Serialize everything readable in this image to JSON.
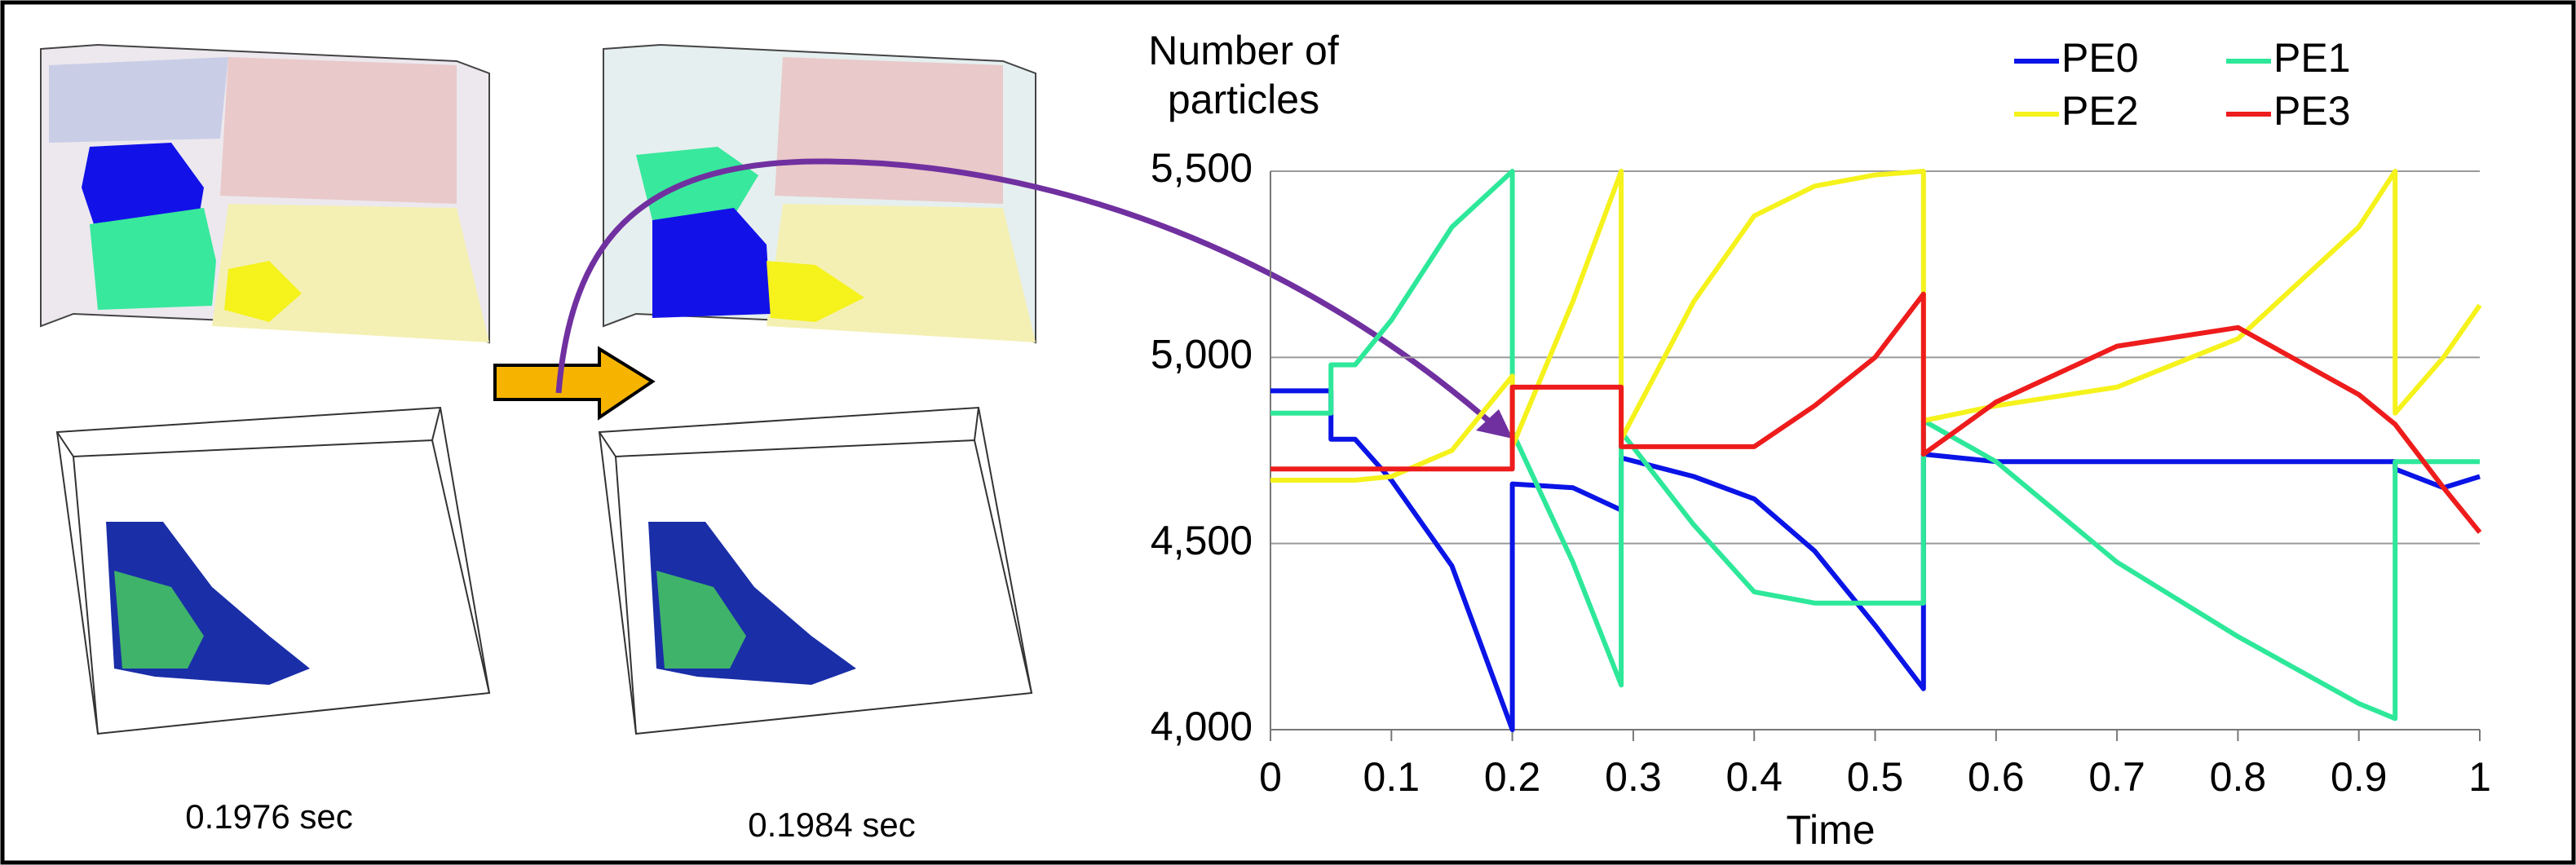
{
  "chart_data": {
    "type": "line",
    "ylabel": "Number of particles",
    "xlabel": "Time",
    "x": [
      0,
      0.05,
      0.05,
      0.07,
      0.1,
      0.15,
      0.2,
      0.2,
      0.25,
      0.29,
      0.29,
      0.35,
      0.4,
      0.45,
      0.5,
      0.54,
      0.54,
      0.6,
      0.7,
      0.8,
      0.9,
      0.93,
      0.93,
      0.97,
      1
    ],
    "series": [
      {
        "name": "PE0",
        "color": "#0a14e6",
        "values": [
          4910,
          4910,
          4780,
          4780,
          4670,
          4440,
          4000,
          4660,
          4650,
          4590,
          4730,
          4680,
          4620,
          4480,
          4280,
          4110,
          4740,
          4720,
          4720,
          4720,
          4720,
          4720,
          4700,
          4650,
          4680
        ]
      },
      {
        "name": "PE1",
        "color": "#2ee89a",
        "values": [
          4850,
          4850,
          4980,
          4980,
          5100,
          5350,
          5500,
          4800,
          4450,
          4120,
          4800,
          4550,
          4370,
          4340,
          4340,
          4340,
          4830,
          4720,
          4450,
          4250,
          4070,
          4030,
          4720,
          4720,
          4720
        ]
      },
      {
        "name": "PE2",
        "color": "#f5f21c",
        "values": [
          4670,
          4670,
          4670,
          4670,
          4680,
          4750,
          4950,
          4760,
          5150,
          5500,
          4780,
          5150,
          5380,
          5460,
          5490,
          5500,
          4830,
          4870,
          4920,
          5050,
          5350,
          5500,
          4850,
          5000,
          5140
        ]
      },
      {
        "name": "PE3",
        "color": "#ee1c1c",
        "values": [
          4700,
          4700,
          4700,
          4700,
          4700,
          4700,
          4700,
          4920,
          4920,
          4920,
          4760,
          4760,
          4760,
          4870,
          5000,
          5170,
          4740,
          4880,
          5030,
          5080,
          4900,
          4820,
          4820,
          4650,
          4530
        ]
      }
    ],
    "xlim": [
      0,
      1
    ],
    "xticks": [
      0,
      0.1,
      0.2,
      0.3,
      0.4,
      0.5,
      0.6,
      0.7,
      0.8,
      0.9,
      1
    ],
    "ylim": [
      4000,
      5500
    ],
    "yticks": [
      {
        "value": 4000,
        "label": "4,000"
      },
      {
        "value": 4500,
        "label": "4,500"
      },
      {
        "value": 5000,
        "label": "5,000"
      },
      {
        "value": 5500,
        "label": "5,500"
      }
    ],
    "grid": true,
    "legend": "top-right"
  },
  "captions": [
    "0.1976 sec",
    "0.1984 sec"
  ]
}
